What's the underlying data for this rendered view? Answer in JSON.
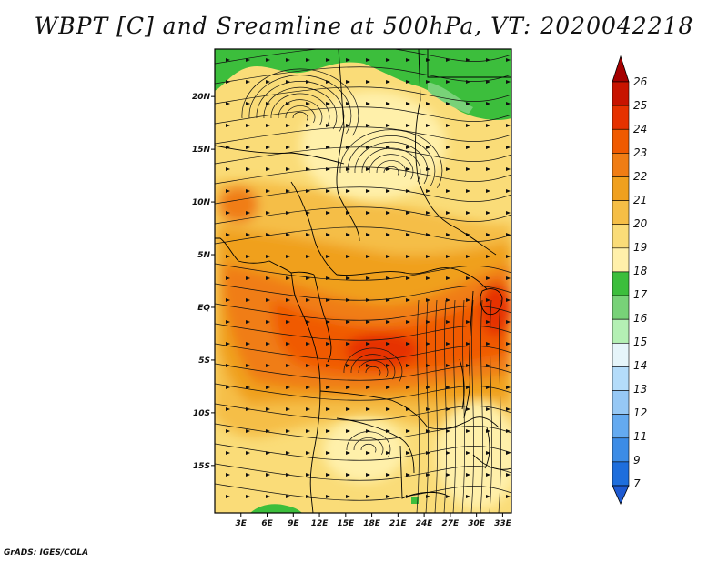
{
  "title": "WBPT [C] and Sreamline at 500hPa, VT: 2020042218",
  "credit": "GrADS: IGES/COLA",
  "map": {
    "lat_range": [
      -19.5,
      24.5
    ],
    "lon_range": [
      0,
      34
    ],
    "lat_ticks": [
      {
        "value": 20,
        "label": "20N"
      },
      {
        "value": 15,
        "label": "15N"
      },
      {
        "value": 10,
        "label": "10N"
      },
      {
        "value": 5,
        "label": "5N"
      },
      {
        "value": 0,
        "label": "EQ"
      },
      {
        "value": -5,
        "label": "5S"
      },
      {
        "value": -10,
        "label": "10S"
      },
      {
        "value": -15,
        "label": "15S"
      }
    ],
    "lon_ticks": [
      {
        "value": 3,
        "label": "3E"
      },
      {
        "value": 6,
        "label": "6E"
      },
      {
        "value": 9,
        "label": "9E"
      },
      {
        "value": 12,
        "label": "12E"
      },
      {
        "value": 15,
        "label": "15E"
      },
      {
        "value": 18,
        "label": "18E"
      },
      {
        "value": 21,
        "label": "21E"
      },
      {
        "value": 24,
        "label": "24E"
      },
      {
        "value": 27,
        "label": "27E"
      },
      {
        "value": 30,
        "label": "30E"
      },
      {
        "value": 33,
        "label": "33E"
      }
    ]
  },
  "colorbar": {
    "levels": [
      {
        "label": "26",
        "color": "#a50000"
      },
      {
        "label": "25",
        "color": "#c81400"
      },
      {
        "label": "24",
        "color": "#e63200"
      },
      {
        "label": "23",
        "color": "#f05a00"
      },
      {
        "label": "22",
        "color": "#f07d14"
      },
      {
        "label": "21",
        "color": "#f0a01e"
      },
      {
        "label": "20",
        "color": "#f5be46"
      },
      {
        "label": "19",
        "color": "#fadc78"
      },
      {
        "label": "18",
        "color": "#fff0aa"
      },
      {
        "label": "17",
        "color": "#3cbe3c"
      },
      {
        "label": "16",
        "color": "#78d278"
      },
      {
        "label": "15",
        "color": "#b4f0b4"
      },
      {
        "label": "14",
        "color": "#e6f5fa"
      },
      {
        "label": "13",
        "color": "#b4dcfa"
      },
      {
        "label": "12",
        "color": "#96c8f5"
      },
      {
        "label": "11",
        "color": "#64aaf0"
      },
      {
        "label": "9",
        "color": "#3c8ce6"
      },
      {
        "label": "7",
        "color": "#1e6edc"
      }
    ],
    "bottom_color": "#1e5ad2"
  }
}
